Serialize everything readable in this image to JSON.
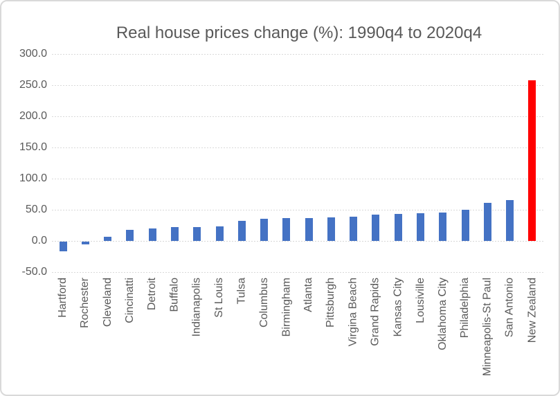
{
  "chart_data": {
    "type": "bar",
    "title": "Real house prices change (%): 1990q4 to 2020q4",
    "xlabel": "",
    "ylabel": "",
    "categories": [
      "Hartford",
      "Rochester",
      "Cleveland",
      "Cincinatti",
      "Detroit",
      "Buffalo",
      "Indianapolis",
      "St Louis",
      "Tulsa",
      "Columbus",
      "Birmingham",
      "Atlanta",
      "Pittsburgh",
      "Virgina Beach",
      "Grand Rapids",
      "Kansas City",
      "Lousiville",
      "Oklahoma City",
      "Philadelphia",
      "Minneapolis-St Paul",
      "San Antonio",
      "New Zealand"
    ],
    "values": [
      -16,
      -4,
      7,
      18,
      20,
      22,
      22,
      23,
      32,
      36,
      37,
      37,
      38,
      39,
      42,
      43,
      44,
      46,
      50,
      61,
      66,
      258
    ],
    "highlight_category": "New Zealand",
    "colors": {
      "default": "#4472C4",
      "highlight": "#FF0000"
    },
    "text_color": "#595959",
    "gridline_color": "#D9D9D9",
    "ylim": [
      -50,
      300
    ],
    "ytick_step": 50,
    "ytick_labels": [
      "300.0",
      "250.0",
      "200.0",
      "150.0",
      "100.0",
      "50.0",
      "0.0",
      "-50.0"
    ],
    "grid": true,
    "legend": "none"
  }
}
